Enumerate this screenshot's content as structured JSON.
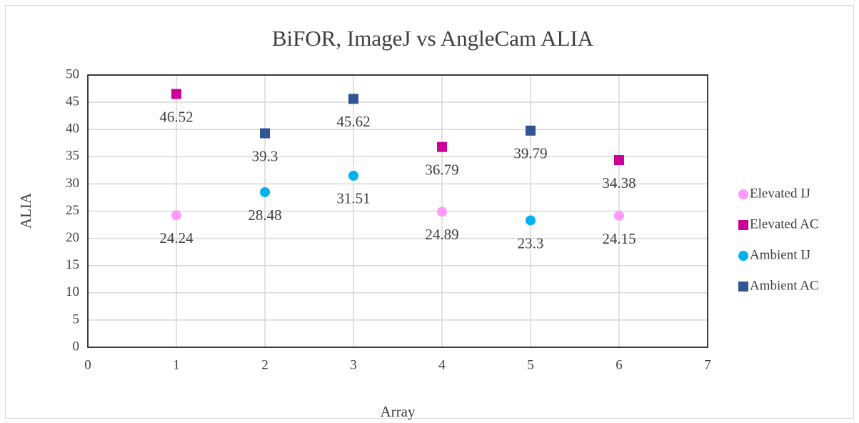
{
  "chart_data": {
    "type": "scatter",
    "title": "BiFOR, ImageJ vs AngleCam ALIA",
    "x_label": "Array",
    "y_label": "ALIA",
    "xlim": [
      0,
      7
    ],
    "xticks": [
      0,
      1,
      2,
      3,
      4,
      5,
      6,
      7
    ],
    "ylim": [
      0,
      50
    ],
    "yticks": [
      0,
      5,
      10,
      15,
      20,
      25,
      30,
      35,
      40,
      45,
      50
    ],
    "grid": true,
    "legend": "right",
    "series": [
      {
        "name": "Elevated IJ",
        "color": "#ff99ff",
        "marker": "circle",
        "x": [
          1,
          4,
          6
        ],
        "values": [
          24.24,
          24.89,
          24.15
        ]
      },
      {
        "name": "Elevated AC",
        "color": "#cc0099",
        "marker": "square",
        "x": [
          1,
          4,
          6
        ],
        "values": [
          46.52,
          36.79,
          34.38
        ]
      },
      {
        "name": "Ambient IJ",
        "color": "#00b0f0",
        "marker": "circle",
        "x": [
          2,
          3,
          5
        ],
        "values": [
          28.48,
          31.51,
          23.3
        ]
      },
      {
        "name": "Ambient AC",
        "color": "#2f5597",
        "marker": "square",
        "x": [
          2,
          3,
          5
        ],
        "values": [
          39.3,
          45.62,
          39.79
        ]
      }
    ]
  }
}
